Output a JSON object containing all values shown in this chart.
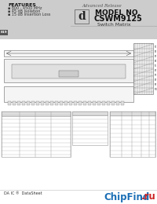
{
  "bg_color": "#e8e8e8",
  "title_line1": "MODEL NO.",
  "title_line2": "CSWM9125",
  "subtitle": "Switch Matrix",
  "advanced_release": "Advanced Release",
  "features_title": "FEATURES",
  "features": [
    "▪ 800 - 4500 MHz",
    "▪ 45 dB Isolation",
    "▪ 15 dB Insertion Loss"
  ],
  "daico_logo_color": "#333333",
  "header_bg": "#cccccc",
  "chipfind_blue": "#1a6eb5",
  "chipfind_red": "#cc2222",
  "chipfind_text": "ChipFind",
  "chipfind_ru": ".ru",
  "footer_text": "DA IC ®  DataSheet",
  "page_label": "819",
  "page_label_bg": "#555555",
  "page_label_color": "#ffffff",
  "table_line_color": "#999999",
  "drawing_line_color": "#666666",
  "white": "#ffffff"
}
